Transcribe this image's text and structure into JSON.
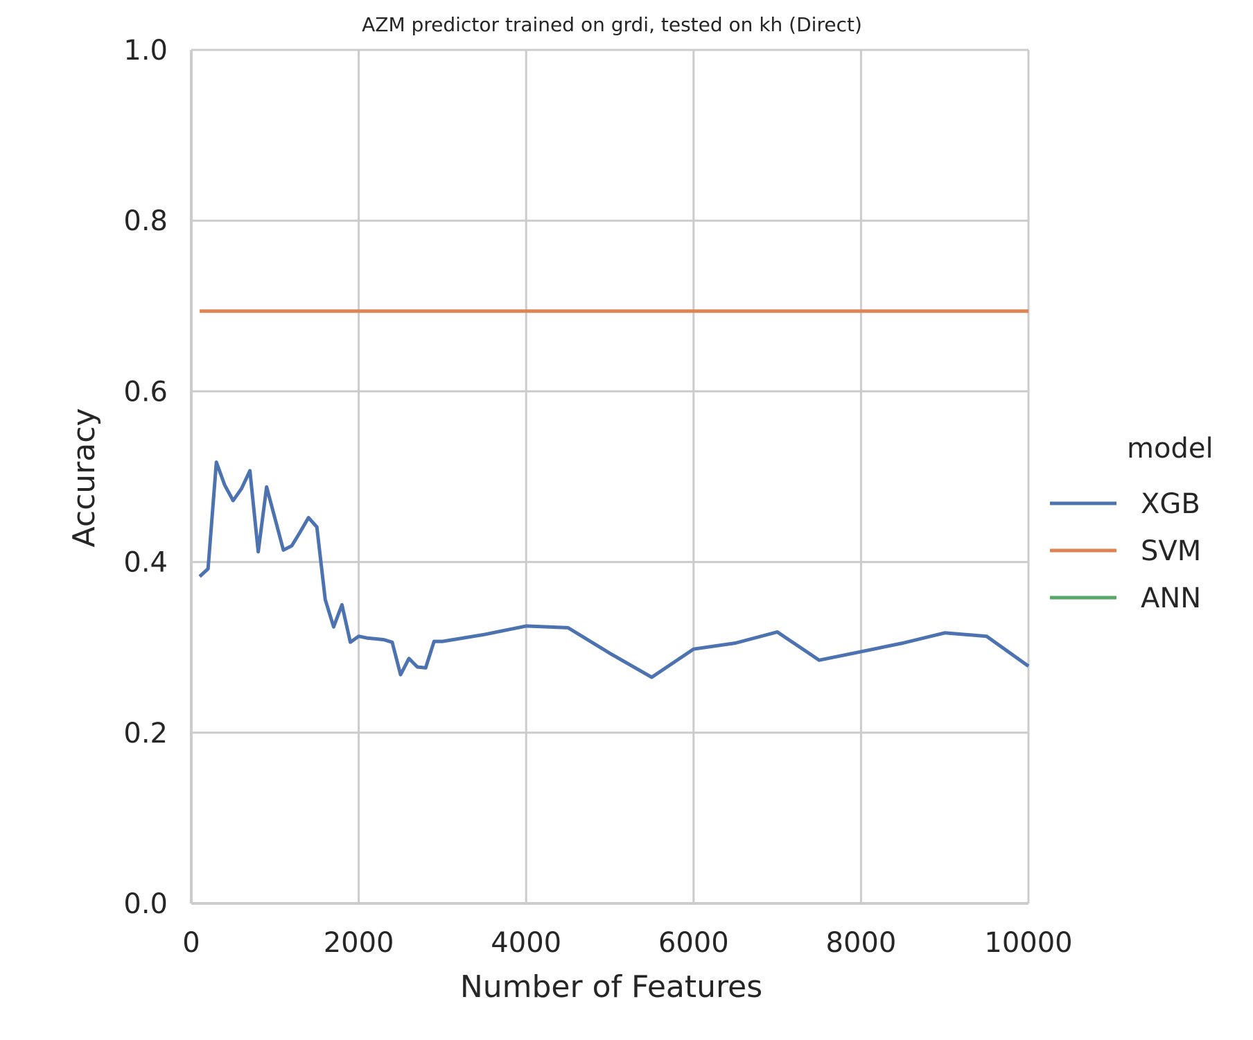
{
  "chart_data": {
    "type": "line",
    "title": "AZM predictor trained on grdi, tested on kh (Direct)",
    "xlabel": "Number of Features",
    "ylabel": "Accuracy",
    "xlim": [
      0,
      10000
    ],
    "ylim": [
      0.0,
      1.0
    ],
    "xticks": [
      0,
      2000,
      4000,
      6000,
      8000,
      10000
    ],
    "xtick_labels": [
      "0",
      "2000",
      "4000",
      "6000",
      "8000",
      "10000"
    ],
    "yticks": [
      0.0,
      0.2,
      0.4,
      0.6,
      0.8,
      1.0
    ],
    "ytick_labels": [
      "0.0",
      "0.2",
      "0.4",
      "0.6",
      "0.8",
      "1.0"
    ],
    "grid": true,
    "legend": {
      "title": "model",
      "placement": "right, outside plot",
      "entries": [
        "XGB",
        "SVM",
        "ANN"
      ]
    },
    "series": [
      {
        "name": "XGB",
        "color": "#4c72b0",
        "x": [
          100,
          200,
          300,
          400,
          500,
          600,
          700,
          800,
          900,
          1000,
          1100,
          1200,
          1300,
          1400,
          1500,
          1600,
          1700,
          1800,
          1900,
          2000,
          2100,
          2200,
          2300,
          2400,
          2500,
          2600,
          2700,
          2800,
          2900,
          3000,
          3500,
          4000,
          4500,
          5000,
          5500,
          6000,
          6500,
          7000,
          7500,
          8000,
          8500,
          9000,
          9500,
          10000
        ],
        "y": [
          0.383,
          0.392,
          0.517,
          0.49,
          0.472,
          0.486,
          0.507,
          0.412,
          0.488,
          0.451,
          0.414,
          0.419,
          0.435,
          0.452,
          0.441,
          0.356,
          0.324,
          0.35,
          0.306,
          0.313,
          0.311,
          0.31,
          0.309,
          0.306,
          0.268,
          0.287,
          0.277,
          0.276,
          0.307,
          0.307,
          0.315,
          0.325,
          0.323,
          0.293,
          0.265,
          0.298,
          0.305,
          0.318,
          0.285,
          0.295,
          0.305,
          0.317,
          0.313,
          0.278
        ]
      },
      {
        "name": "SVM",
        "color": "#dd8452",
        "x": [
          100,
          10000
        ],
        "y": [
          0.694,
          0.694
        ]
      },
      {
        "name": "ANN",
        "color": "#55a868",
        "x": [],
        "y": []
      }
    ]
  }
}
